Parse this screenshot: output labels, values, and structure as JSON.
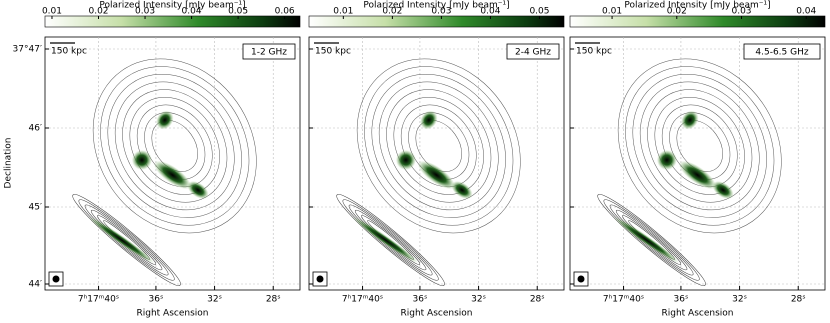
{
  "y_label": "Declination",
  "y_ticks": [
    "37°47′",
    "46′",
    "45′",
    "44′"
  ],
  "panels": [
    {
      "colorbar_label": "Polarized Intensity [mJy beam⁻¹]",
      "colorbar_range": [
        0.0085,
        0.0633
      ],
      "colorbar_ticks": [
        0.01,
        0.02,
        0.03,
        0.04,
        0.05,
        0.06
      ],
      "band": "1-2 GHz",
      "scale": "150 kpc",
      "x_ticks": [
        "7ʰ17ᵐ40ˢ",
        "36ˢ",
        "32ˢ",
        "28ˢ"
      ],
      "x_label": "Right Ascension"
    },
    {
      "colorbar_label": "Polarized Intensity [mJy beam⁻¹]",
      "colorbar_range": [
        0.003,
        0.055
      ],
      "colorbar_ticks": [
        0.01,
        0.02,
        0.03,
        0.04,
        0.05
      ],
      "band": "2-4 GHz",
      "scale": "150 kpc",
      "x_ticks": [
        "7ʰ17ᵐ40ˢ",
        "36ˢ",
        "32ˢ",
        "28ˢ"
      ],
      "x_label": "Right Ascension"
    },
    {
      "colorbar_label": "Polarized Intensity [mJy beam⁻¹]",
      "colorbar_range": [
        0.0035,
        0.0429
      ],
      "colorbar_ticks": [
        0.01,
        0.02,
        0.03,
        0.04
      ],
      "band": "4.5-6.5 GHz",
      "scale": "150 kpc",
      "x_ticks": [
        "7ʰ17ᵐ40ˢ",
        "36ˢ",
        "32ˢ",
        "28ˢ"
      ],
      "x_label": "Right Ascension"
    }
  ]
}
